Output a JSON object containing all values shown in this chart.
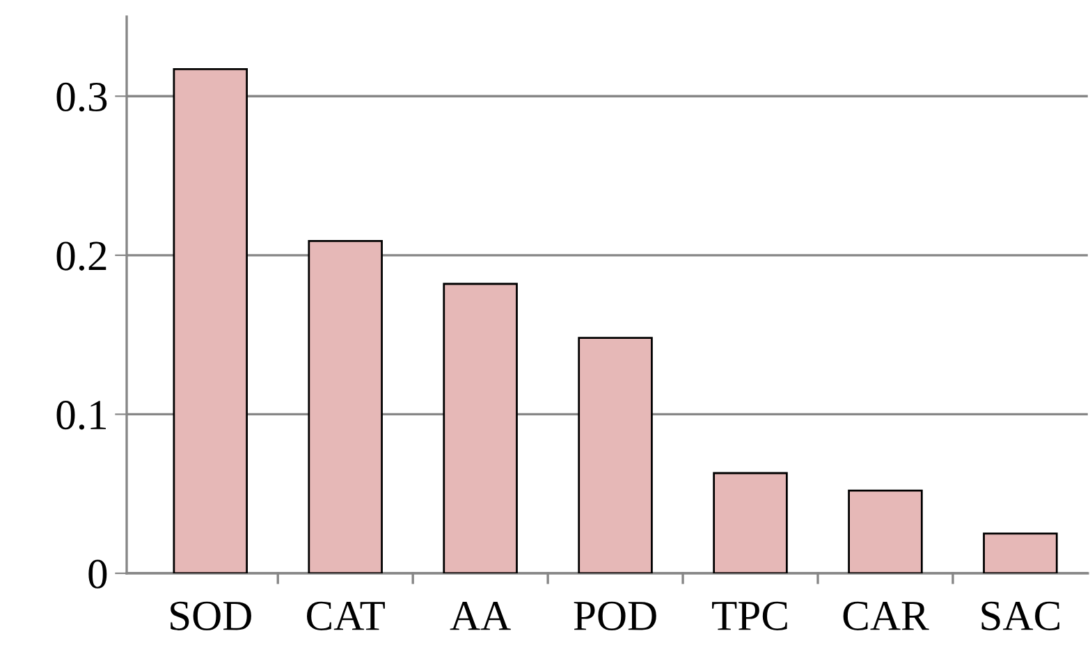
{
  "chart_data": {
    "type": "bar",
    "categories": [
      "SOD",
      "CAT",
      "AA",
      "POD",
      "TPC",
      "CAR",
      "SAC"
    ],
    "values": [
      0.317,
      0.209,
      0.182,
      0.148,
      0.063,
      0.052,
      0.025
    ],
    "color": "#e6b8b7",
    "ylim": [
      0,
      0.35
    ],
    "yticks": [
      {
        "value": 0,
        "label": "0"
      },
      0.1,
      0.2,
      0.3
    ],
    "grid": "y"
  }
}
